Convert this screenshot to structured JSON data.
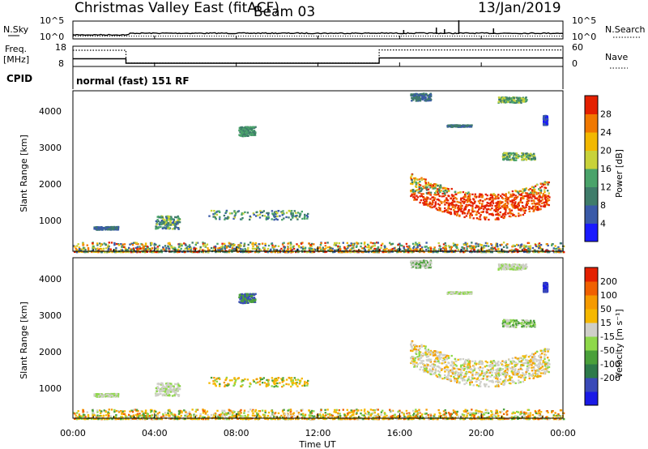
{
  "header": {
    "title": "Christmas Valley East (fitACF)",
    "beam": "Beam 03",
    "date": "13/Jan/2019"
  },
  "panel_labels": {
    "nsky": "N.Sky",
    "nsearch": "N.Search",
    "freq": "Freq.",
    "freq_unit": "[MHz]",
    "nave": "Nave",
    "cpid": "CPID",
    "cpid_text": "normal (fast) 151 RF"
  },
  "chart_data": [
    {
      "type": "line",
      "name": "noise",
      "left_ticks": [
        "10^5",
        "10^0"
      ],
      "right_ticks": [
        "10^5",
        "10^0"
      ],
      "x_range_hours": [
        0,
        24
      ]
    },
    {
      "type": "line",
      "name": "frequency_nave",
      "left_ticks": [
        "18",
        "8"
      ],
      "right_ticks": [
        "60",
        "0"
      ],
      "series": [
        {
          "name": "Freq.",
          "x": [
            0,
            2.6,
            2.6,
            15,
            15,
            24
          ],
          "y": [
            11.8,
            11.8,
            9.6,
            9.6,
            12.2,
            12.2
          ]
        },
        {
          "name": "Nave",
          "x": [
            0,
            2.6,
            2.6,
            15,
            15,
            24
          ],
          "y": [
            48,
            48,
            10,
            10,
            49,
            49
          ]
        }
      ]
    },
    {
      "type": "heatmap",
      "name": "power",
      "ylabel": "Slant Range [km]",
      "yticks": [
        "1000",
        "2000",
        "3000",
        "4000"
      ],
      "ylim": [
        180,
        4500
      ],
      "colorbar_label": "Power [dB]",
      "colorbar_ticks": [
        "4",
        "8",
        "12",
        "16",
        "20",
        "24",
        "28"
      ],
      "colorbar_colors": [
        "#1a1aff",
        "#3a5aa8",
        "#3f7c6a",
        "#4aa36a",
        "#c8d23a",
        "#f2b800",
        "#f07800",
        "#e42000"
      ]
    },
    {
      "type": "heatmap",
      "name": "velocity",
      "ylabel": "Slant Range [km]",
      "yticks": [
        "1000",
        "2000",
        "3000",
        "4000"
      ],
      "ylim": [
        180,
        4500
      ],
      "colorbar_label": "Velocity [m s⁻¹]",
      "colorbar_ticks": [
        "200",
        "100",
        "50",
        "15",
        "-15",
        "-50",
        "-100",
        "-200"
      ],
      "colorbar_colors": [
        "#1a1ae6",
        "#3a4ab8",
        "#2e7a4a",
        "#4aa03a",
        "#8ed84a",
        "#cfcfc8",
        "#f5b800",
        "#f59a00",
        "#f06000",
        "#e42000"
      ]
    }
  ],
  "xaxis": {
    "label": "Time UT",
    "ticks": [
      "00:00",
      "04:00",
      "08:00",
      "12:00",
      "16:00",
      "20:00",
      "00:00"
    ]
  }
}
